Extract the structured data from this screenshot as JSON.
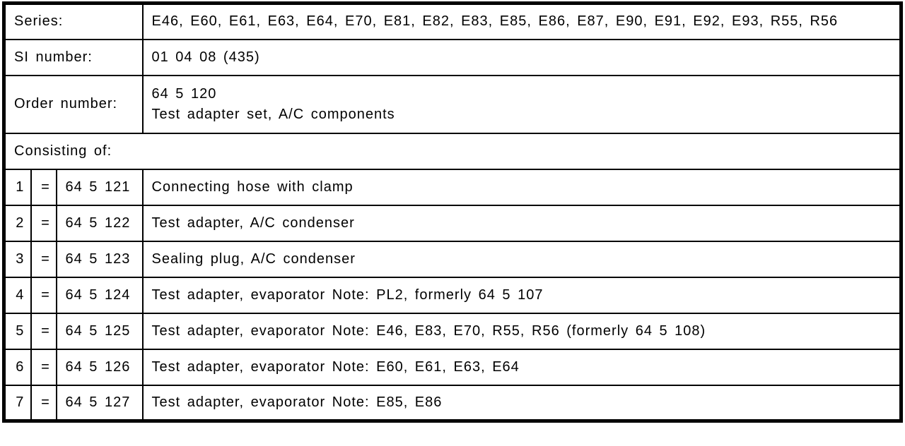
{
  "document": {
    "type": "service-information-table",
    "colors": {
      "background": "#ffffff",
      "border": "#000000",
      "text": "#000000"
    },
    "header_rows": [
      {
        "label": "Series:",
        "value": "E46, E60, E61, E63, E64, E70, E81, E82, E83, E85, E86, E87, E90, E91, E92, E93, R55, R56"
      },
      {
        "label": "SI number:",
        "value": "01 04 08 (435)"
      },
      {
        "label": "Order number:",
        "value_line1": "64 5 120",
        "value_line2": "Test adapter set, A/C components"
      }
    ],
    "section_label": "Consisting of:",
    "items": [
      {
        "no": "1",
        "eq": "=",
        "part": "64 5 121",
        "desc": "Connecting hose with clamp"
      },
      {
        "no": "2",
        "eq": "=",
        "part": "64 5 122",
        "desc": "Test adapter, A/C condenser"
      },
      {
        "no": "3",
        "eq": "=",
        "part": "64 5 123",
        "desc": "Sealing plug, A/C condenser"
      },
      {
        "no": "4",
        "eq": "=",
        "part": "64 5 124",
        "desc": "Test adapter, evaporator Note: PL2, formerly 64 5 107"
      },
      {
        "no": "5",
        "eq": "=",
        "part": "64 5 125",
        "desc": "Test adapter, evaporator Note: E46, E83, E70, R55, R56 (formerly 64 5 108)"
      },
      {
        "no": "6",
        "eq": "=",
        "part": "64 5 126",
        "desc": "Test adapter, evaporator Note: E60, E61, E63, E64"
      },
      {
        "no": "7",
        "eq": "=",
        "part": "64 5 127",
        "desc": "Test adapter, evaporator Note: E85, E86"
      }
    ]
  }
}
